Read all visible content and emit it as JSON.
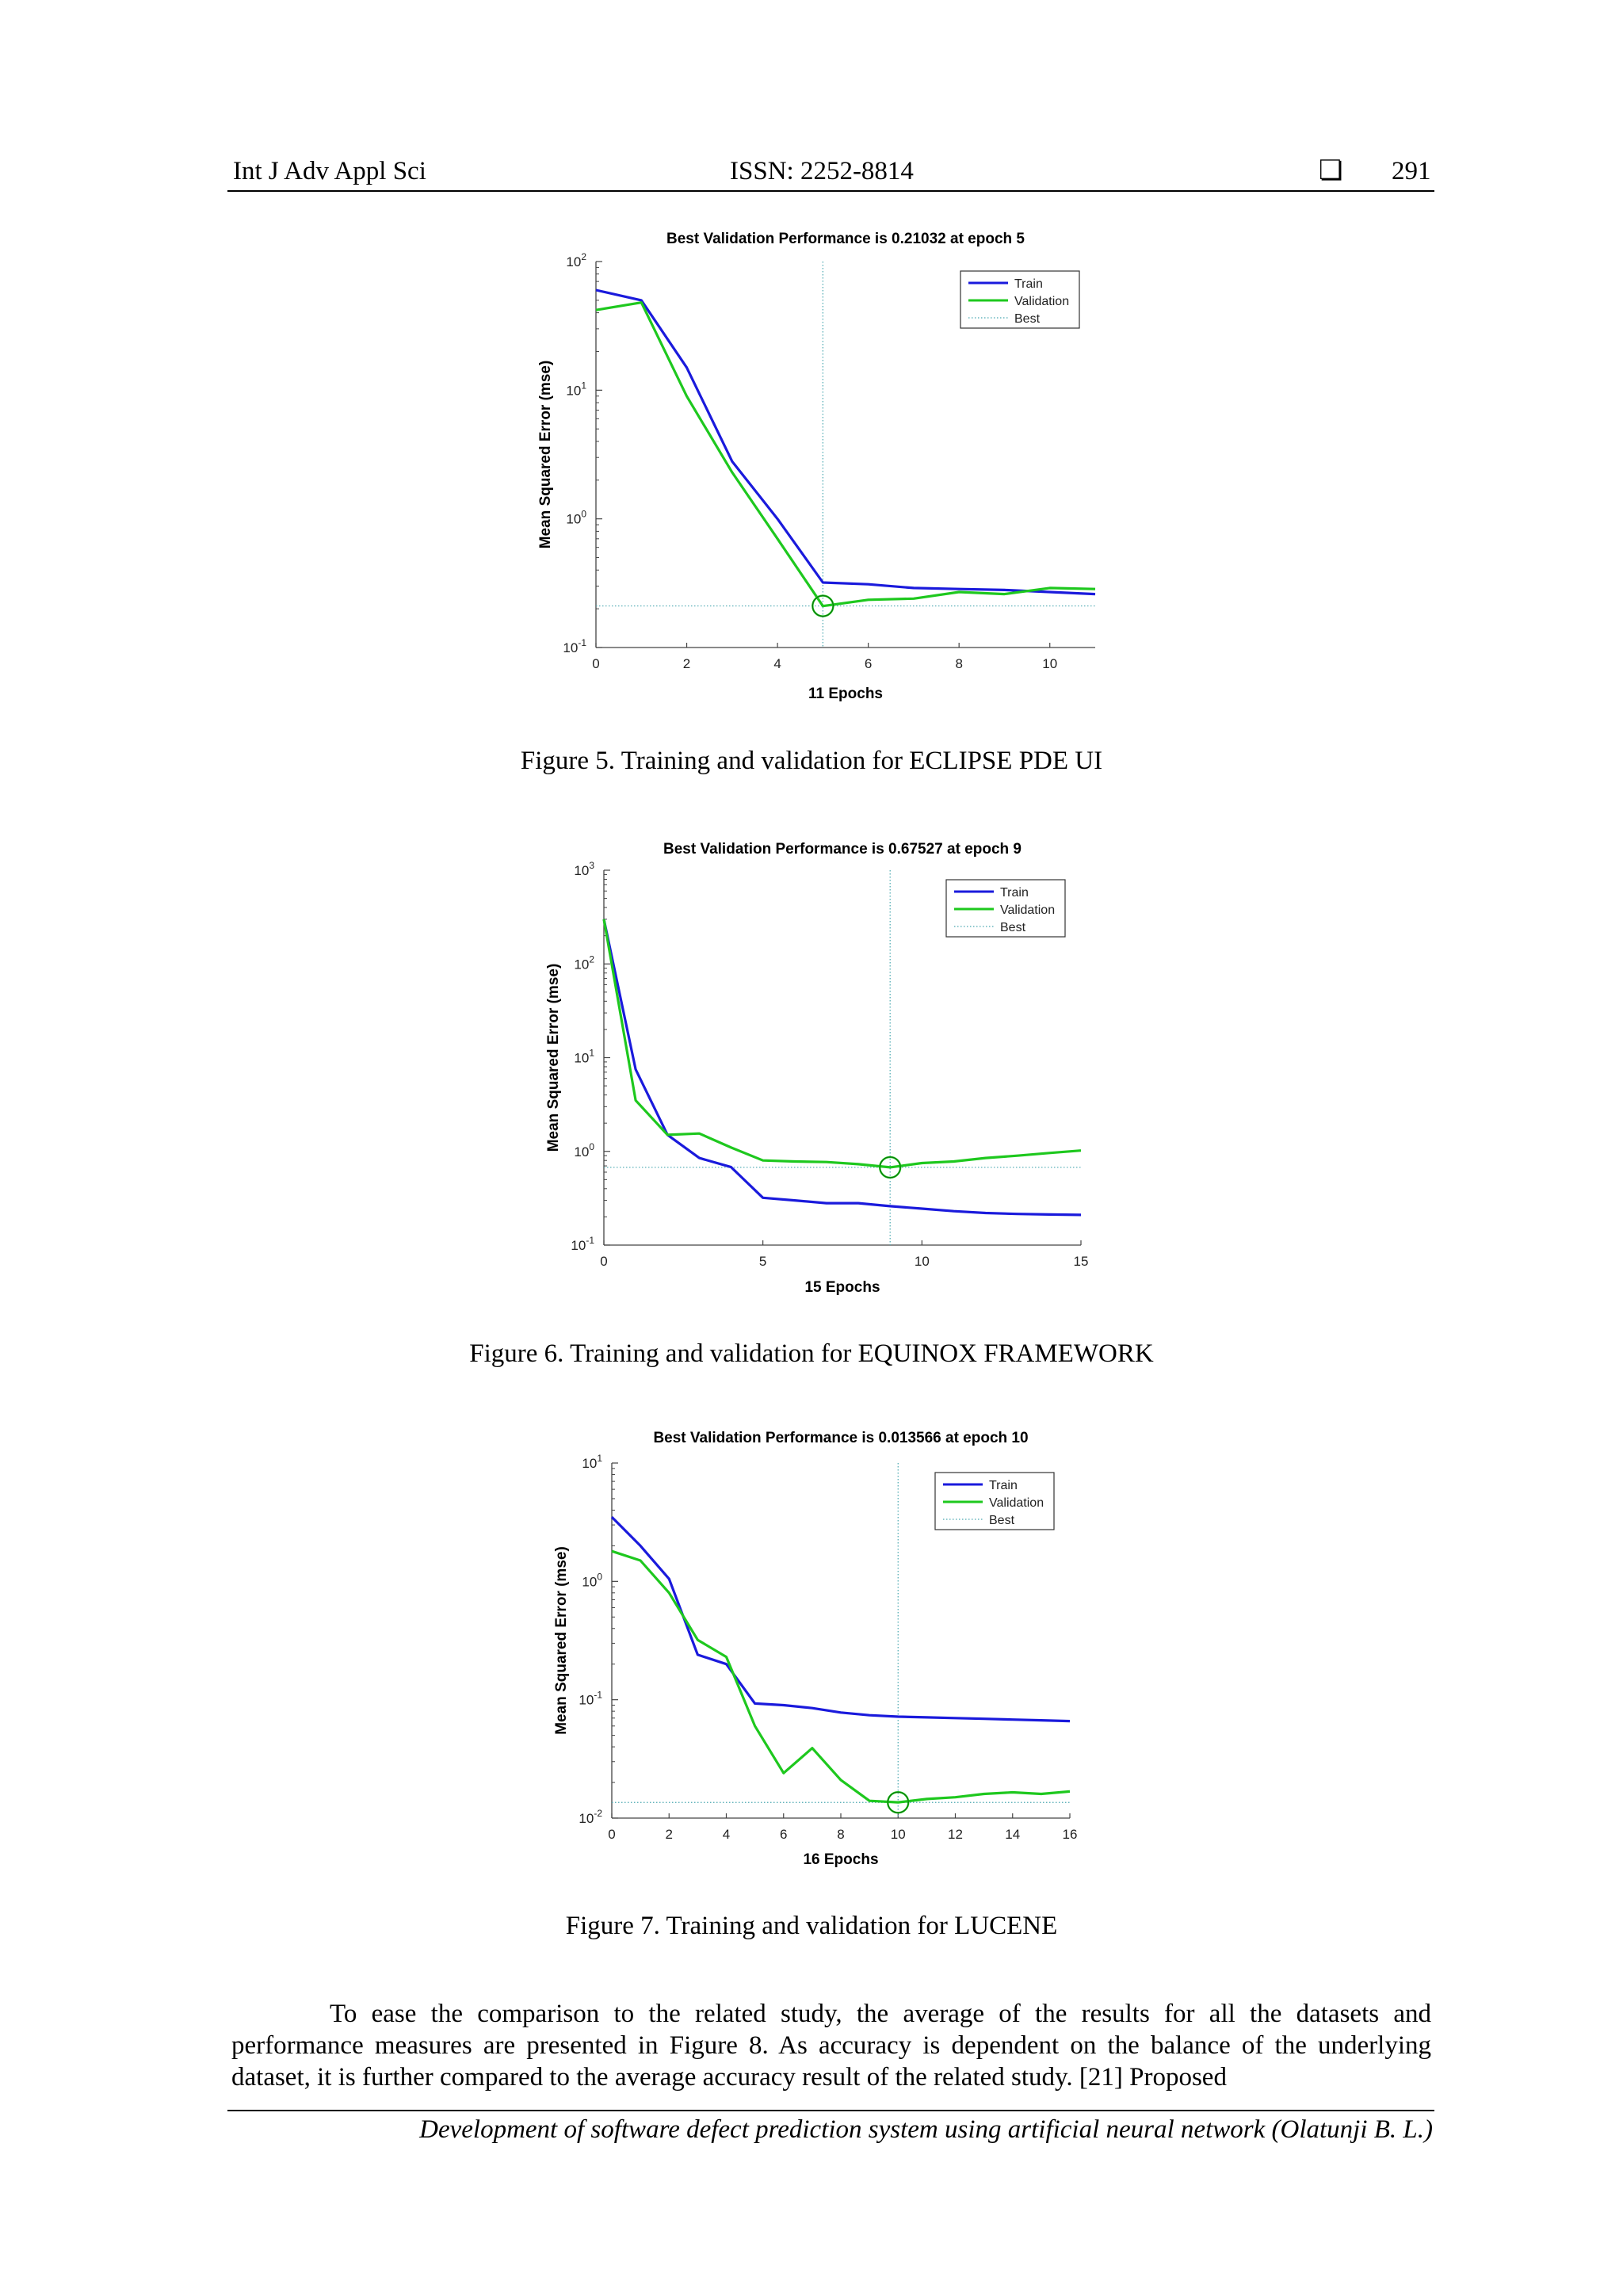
{
  "header": {
    "journal": "Int J Adv Appl Sci",
    "issn": "ISSN: 2252-8814",
    "box_glyph": "❏",
    "page": "291"
  },
  "figures": [
    {
      "caption": "Figure 5. Training and validation for ECLIPSE PDE UI",
      "chart_data": {
        "type": "line",
        "title": "Best Validation Performance is 0.21032 at epoch 5",
        "xlabel": "11 Epochs",
        "ylabel": "Mean Squared Error  (mse)",
        "xlim": [
          0,
          11
        ],
        "ylim": [
          0.1,
          100
        ],
        "yscale": "log",
        "xticks": [
          0,
          2,
          4,
          6,
          8,
          10
        ],
        "ytick_exponents": [
          -1,
          0,
          1,
          2
        ],
        "legend": [
          "Train",
          "Validation",
          "Best"
        ],
        "legend_position": "top-right",
        "best_epoch": 5,
        "best_value": 0.21032,
        "series": [
          {
            "name": "Train",
            "color": "#1a1adc",
            "x": [
              0,
              1,
              2,
              3,
              4,
              5,
              6,
              7,
              8,
              9,
              10,
              11
            ],
            "values": [
              60,
              50,
              15,
              2.8,
              1.0,
              0.32,
              0.31,
              0.29,
              0.285,
              0.28,
              0.27,
              0.26
            ]
          },
          {
            "name": "Validation",
            "color": "#1ec81e",
            "x": [
              0,
              1,
              2,
              3,
              4,
              5,
              6,
              7,
              8,
              9,
              10,
              11
            ],
            "values": [
              42,
              48,
              9,
              2.3,
              0.7,
              0.21,
              0.235,
              0.24,
              0.27,
              0.26,
              0.29,
              0.285
            ]
          }
        ]
      }
    },
    {
      "caption": "Figure 6. Training and validation for EQUINOX FRAMEWORK",
      "chart_data": {
        "type": "line",
        "title": "Best Validation Performance is 0.67527 at epoch 9",
        "xlabel": "15 Epochs",
        "ylabel": "Mean Squared Error  (mse)",
        "xlim": [
          0,
          15
        ],
        "ylim": [
          0.1,
          1000
        ],
        "yscale": "log",
        "xticks": [
          0,
          5,
          10,
          15
        ],
        "ytick_exponents": [
          -1,
          0,
          1,
          2,
          3
        ],
        "legend": [
          "Train",
          "Validation",
          "Best"
        ],
        "legend_position": "top-right",
        "best_epoch": 9,
        "best_value": 0.67527,
        "series": [
          {
            "name": "Train",
            "color": "#1a1adc",
            "x": [
              0,
              1,
              2,
              3,
              4,
              5,
              6,
              7,
              8,
              9,
              10,
              11,
              12,
              13,
              14,
              15
            ],
            "values": [
              300,
              7.5,
              1.5,
              0.85,
              0.68,
              0.32,
              0.3,
              0.28,
              0.28,
              0.26,
              0.245,
              0.23,
              0.22,
              0.215,
              0.212,
              0.21
            ]
          },
          {
            "name": "Validation",
            "color": "#1ec81e",
            "x": [
              0,
              1,
              2,
              3,
              4,
              5,
              6,
              7,
              8,
              9,
              10,
              11,
              12,
              13,
              14,
              15
            ],
            "values": [
              300,
              3.5,
              1.5,
              1.55,
              1.1,
              0.8,
              0.78,
              0.77,
              0.73,
              0.675,
              0.75,
              0.78,
              0.85,
              0.9,
              0.96,
              1.02
            ]
          }
        ]
      }
    },
    {
      "caption": "Figure 7. Training and validation for LUCENE",
      "chart_data": {
        "type": "line",
        "title": "Best Validation Performance is 0.013566 at epoch 10",
        "xlabel": "16 Epochs",
        "ylabel": "Mean Squared Error  (mse)",
        "xlim": [
          0,
          16
        ],
        "ylim": [
          0.01,
          10
        ],
        "yscale": "log",
        "xticks": [
          0,
          2,
          4,
          6,
          8,
          10,
          12,
          14,
          16
        ],
        "ytick_exponents": [
          -2,
          -1,
          0,
          1
        ],
        "legend": [
          "Train",
          "Validation",
          "Best"
        ],
        "legend_position": "top-right",
        "best_epoch": 10,
        "best_value": 0.013566,
        "series": [
          {
            "name": "Train",
            "color": "#1a1adc",
            "x": [
              0,
              1,
              2,
              3,
              4,
              5,
              6,
              7,
              8,
              9,
              10,
              11,
              12,
              13,
              14,
              15,
              16
            ],
            "values": [
              3.5,
              2.0,
              1.05,
              0.24,
              0.2,
              0.093,
              0.09,
              0.085,
              0.078,
              0.074,
              0.072,
              0.071,
              0.07,
              0.069,
              0.068,
              0.067,
              0.066
            ]
          },
          {
            "name": "Validation",
            "color": "#1ec81e",
            "x": [
              0,
              1,
              2,
              3,
              4,
              5,
              6,
              7,
              8,
              9,
              10,
              11,
              12,
              13,
              14,
              15,
              16
            ],
            "values": [
              1.8,
              1.5,
              0.8,
              0.32,
              0.23,
              0.06,
              0.024,
              0.039,
              0.021,
              0.014,
              0.0136,
              0.0145,
              0.015,
              0.016,
              0.0165,
              0.016,
              0.0168
            ]
          }
        ]
      }
    }
  ],
  "body": {
    "paragraph": "To ease the comparison to the related study, the average of the results for all the datasets and performance measures are presented in Figure 8. As accuracy is dependent on the balance of the underlying dataset, it is further compared to the average accuracy result of the related study. [21] Proposed"
  },
  "footer": {
    "text": "Development of software defect prediction system using artificial neural network (Olatunji B. L.)"
  }
}
